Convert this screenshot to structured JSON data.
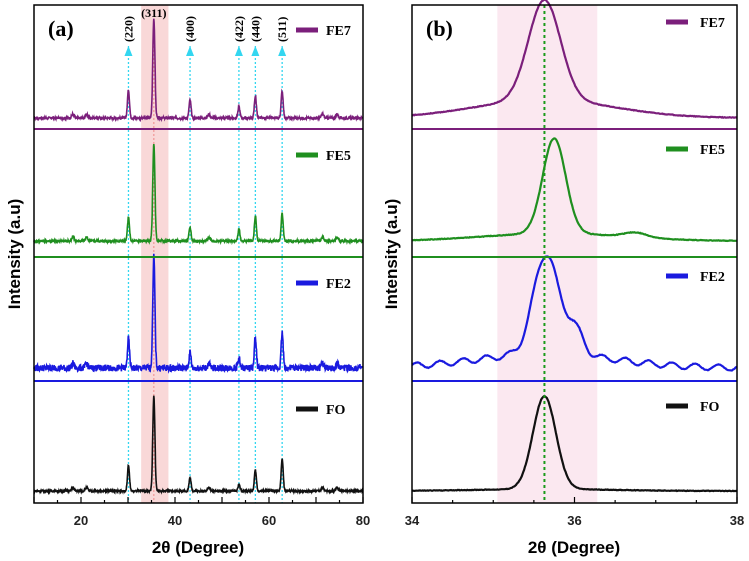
{
  "chart_data": [
    {
      "type": "line",
      "panel_label": "(a)",
      "xlabel": "2θ (Degree)",
      "ylabel": "Intensity (a.u)",
      "xlim": [
        10,
        80
      ],
      "xticks": [
        "20",
        "40",
        "60",
        "80"
      ],
      "xtick_values": [
        20,
        40,
        60,
        80
      ],
      "highlight_band": [
        32.8,
        38.6
      ],
      "peaks": [
        {
          "label": "(220)",
          "x": 30.1
        },
        {
          "label": "(311)",
          "x": 35.5
        },
        {
          "label": "(400)",
          "x": 43.2
        },
        {
          "label": "(422)",
          "x": 53.6
        },
        {
          "label": "(440)",
          "x": 57.1
        },
        {
          "label": "(511)",
          "x": 62.8
        }
      ],
      "series": [
        {
          "name": "FE7",
          "color": "#7b1f7b",
          "peak_heights": [
            0.28,
            1.0,
            0.18,
            0.11,
            0.22,
            0.27
          ],
          "noise": 0.012
        },
        {
          "name": "FE5",
          "color": "#1f8f1f",
          "peak_heights": [
            0.24,
            1.0,
            0.14,
            0.12,
            0.25,
            0.28
          ],
          "noise": 0.012
        },
        {
          "name": "FE2",
          "color": "#1a1adf",
          "peak_heights": [
            0.26,
            1.0,
            0.14,
            0.09,
            0.28,
            0.32
          ],
          "noise": 0.03
        },
        {
          "name": "FO",
          "color": "#111111",
          "peak_heights": [
            0.27,
            1.0,
            0.14,
            0.07,
            0.22,
            0.34
          ],
          "noise": 0.01
        }
      ]
    },
    {
      "type": "line",
      "panel_label": "(b)",
      "xlabel": "2θ (Degree)",
      "ylabel": "Intensity (a.u)",
      "xlim": [
        34,
        38
      ],
      "xticks": [
        "34",
        "36",
        "38"
      ],
      "xtick_values": [
        34,
        36,
        38
      ],
      "highlight_band": [
        35.05,
        36.28
      ],
      "reference_line": 35.63,
      "series": [
        {
          "name": "FE7",
          "color": "#7b1f7b",
          "center": 35.63,
          "width": 0.28,
          "background": 0.18
        },
        {
          "name": "FE5",
          "color": "#1f8f1f",
          "center": 35.75,
          "width": 0.2,
          "background": 0.08
        },
        {
          "name": "FE2",
          "color": "#1a1adf",
          "center": 35.65,
          "width": 0.22,
          "background": 0.14
        },
        {
          "name": "FO",
          "color": "#111111",
          "center": 35.63,
          "width": 0.2,
          "background": 0.02
        }
      ]
    }
  ]
}
